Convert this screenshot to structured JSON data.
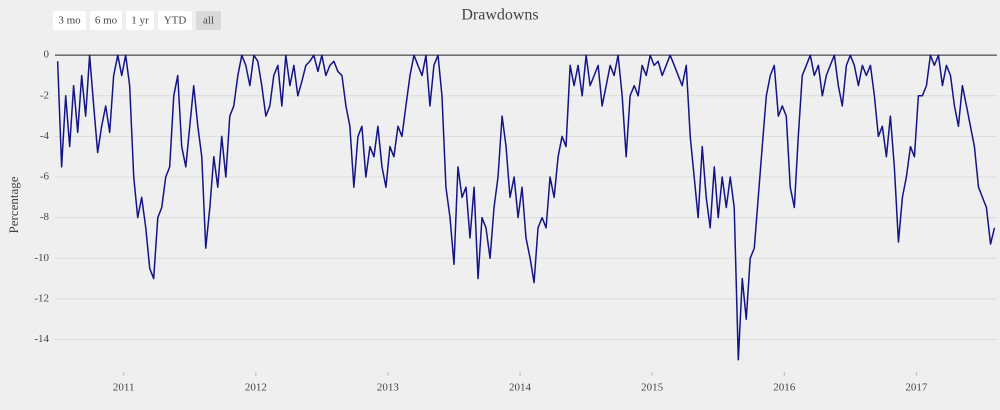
{
  "chart_data": {
    "type": "line",
    "title": "Drawdowns",
    "y_label": "Percentage",
    "range_buttons": [
      "3 mo",
      "6 mo",
      "1 yr",
      "YTD",
      "all"
    ],
    "active_button": 4,
    "grid": true,
    "xlim": [
      2010.48,
      2017.61
    ],
    "ylim": [
      -15.6,
      0.6
    ],
    "xticks": [
      2011,
      2012,
      2013,
      2014,
      2015,
      2016,
      2017
    ],
    "yticks": [
      0,
      -2,
      -4,
      -6,
      -8,
      -10,
      -12,
      -14
    ],
    "x": [
      2010.5,
      2010.53,
      2010.561,
      2010.591,
      2010.621,
      2010.652,
      2010.682,
      2010.712,
      2010.742,
      2010.773,
      2010.803,
      2010.833,
      2010.864,
      2010.894,
      2010.924,
      2010.955,
      2010.985,
      2011.015,
      2011.045,
      2011.076,
      2011.106,
      2011.136,
      2011.167,
      2011.197,
      2011.227,
      2011.258,
      2011.288,
      2011.318,
      2011.348,
      2011.379,
      2011.409,
      2011.439,
      2011.47,
      2011.5,
      2011.53,
      2011.561,
      2011.591,
      2011.621,
      2011.652,
      2011.682,
      2011.712,
      2011.742,
      2011.773,
      2011.803,
      2011.833,
      2011.864,
      2011.894,
      2011.924,
      2011.955,
      2011.985,
      2012.015,
      2012.045,
      2012.076,
      2012.106,
      2012.136,
      2012.167,
      2012.197,
      2012.227,
      2012.258,
      2012.288,
      2012.318,
      2012.348,
      2012.379,
      2012.409,
      2012.439,
      2012.47,
      2012.5,
      2012.53,
      2012.561,
      2012.591,
      2012.621,
      2012.652,
      2012.682,
      2012.712,
      2012.742,
      2012.773,
      2012.803,
      2012.833,
      2012.864,
      2012.894,
      2012.924,
      2012.955,
      2012.985,
      2013.015,
      2013.045,
      2013.076,
      2013.106,
      2013.136,
      2013.167,
      2013.197,
      2013.227,
      2013.258,
      2013.288,
      2013.318,
      2013.348,
      2013.379,
      2013.409,
      2013.439,
      2013.47,
      2013.5,
      2013.53,
      2013.561,
      2013.591,
      2013.621,
      2013.652,
      2013.682,
      2013.712,
      2013.742,
      2013.773,
      2013.803,
      2013.833,
      2013.864,
      2013.894,
      2013.924,
      2013.955,
      2013.985,
      2014.015,
      2014.045,
      2014.076,
      2014.106,
      2014.136,
      2014.167,
      2014.197,
      2014.227,
      2014.258,
      2014.288,
      2014.318,
      2014.348,
      2014.379,
      2014.409,
      2014.439,
      2014.47,
      2014.5,
      2014.53,
      2014.561,
      2014.591,
      2014.621,
      2014.652,
      2014.682,
      2014.712,
      2014.742,
      2014.773,
      2014.803,
      2014.833,
      2014.864,
      2014.894,
      2014.924,
      2014.955,
      2014.985,
      2015.015,
      2015.045,
      2015.076,
      2015.106,
      2015.136,
      2015.167,
      2015.197,
      2015.227,
      2015.258,
      2015.288,
      2015.318,
      2015.348,
      2015.379,
      2015.409,
      2015.439,
      2015.47,
      2015.5,
      2015.53,
      2015.561,
      2015.591,
      2015.621,
      2015.652,
      2015.682,
      2015.712,
      2015.742,
      2015.773,
      2015.803,
      2015.833,
      2015.864,
      2015.894,
      2015.924,
      2015.955,
      2015.985,
      2016.015,
      2016.045,
      2016.076,
      2016.106,
      2016.136,
      2016.167,
      2016.197,
      2016.227,
      2016.258,
      2016.288,
      2016.318,
      2016.348,
      2016.379,
      2016.409,
      2016.439,
      2016.47,
      2016.5,
      2016.53,
      2016.561,
      2016.591,
      2016.621,
      2016.652,
      2016.682,
      2016.712,
      2016.742,
      2016.773,
      2016.803,
      2016.833,
      2016.864,
      2016.894,
      2016.924,
      2016.955,
      2016.985,
      2017.015,
      2017.045,
      2017.076,
      2017.106,
      2017.136,
      2017.167,
      2017.197,
      2017.227,
      2017.258,
      2017.288,
      2017.318,
      2017.348,
      2017.379,
      2017.409,
      2017.439,
      2017.47,
      2017.5,
      2017.53,
      2017.561,
      2017.591
    ],
    "series": [
      {
        "color": "#141487",
        "values": [
          -0.3,
          -5.5,
          -2,
          -4.5,
          -1.5,
          -3.8,
          -1,
          -3,
          0,
          -2.5,
          -4.8,
          -3.5,
          -2.5,
          -3.8,
          -1,
          0,
          -1,
          0,
          -1.5,
          -6,
          -8,
          -7,
          -8.5,
          -10.5,
          -11,
          -8,
          -7.5,
          -6,
          -5.5,
          -2,
          -1,
          -4.5,
          -5.5,
          -3.5,
          -1.5,
          -3.5,
          -5,
          -9.5,
          -7.5,
          -5,
          -6.5,
          -4,
          -6,
          -3,
          -2.5,
          -1,
          0,
          -0.5,
          -1.5,
          0,
          -0.3,
          -1.5,
          -3,
          -2.5,
          -1,
          -0.5,
          -2.5,
          0,
          -1.5,
          -0.5,
          -2,
          -1.3,
          -0.5,
          -0.3,
          0,
          -0.8,
          0,
          -1,
          -0.5,
          -0.3,
          -0.8,
          -1,
          -2.5,
          -3.5,
          -6.5,
          -4,
          -3.5,
          -6,
          -4.5,
          -5,
          -3.5,
          -5.5,
          -6.5,
          -4.5,
          -5,
          -3.5,
          -4,
          -2.5,
          -1,
          0,
          -0.5,
          -1,
          0,
          -2.5,
          -0.5,
          0,
          -2,
          -6.5,
          -8,
          -10.3,
          -5.5,
          -7,
          -6.5,
          -9,
          -6.5,
          -11,
          -8,
          -8.5,
          -10,
          -7.5,
          -6,
          -3,
          -4.5,
          -7,
          -6,
          -8,
          -6.5,
          -9,
          -10,
          -11.2,
          -8.5,
          -8,
          -8.5,
          -6,
          -7,
          -5,
          -4,
          -4.5,
          -0.5,
          -1.5,
          -0.5,
          -2,
          0,
          -1.5,
          -1,
          -0.5,
          -2.5,
          -1.5,
          -0.5,
          -1,
          0,
          -2,
          -5,
          -2,
          -1.5,
          -2,
          -0.5,
          -1,
          0,
          -0.5,
          -0.3,
          -1,
          -0.5,
          0,
          -0.5,
          -1,
          -1.5,
          -0.5,
          -4,
          -6,
          -8,
          -4.5,
          -7,
          -8.5,
          -5.5,
          -8,
          -6,
          -7.5,
          -6,
          -7.5,
          -15,
          -11,
          -13,
          -10,
          -9.5,
          -7,
          -4.5,
          -2,
          -1,
          -0.5,
          -3,
          -2.5,
          -3,
          -6.5,
          -7.5,
          -4,
          -1,
          -0.5,
          0,
          -1,
          -0.5,
          -2,
          -1,
          -0.5,
          0,
          -1.5,
          -2.5,
          -0.5,
          0,
          -0.5,
          -1.5,
          -0.5,
          -1,
          -0.5,
          -2,
          -4,
          -3.5,
          -5,
          -3,
          -5.5,
          -9.2,
          -7,
          -6,
          -4.5,
          -5,
          -2,
          -2,
          -1.5,
          0,
          -0.5,
          0,
          -1.5,
          -0.5,
          -1,
          -2.5,
          -3.5,
          -1.5,
          -2.5,
          -3.5,
          -4.5,
          -6.5,
          -7,
          -7.5,
          -9.3,
          -8.5
        ]
      }
    ]
  }
}
